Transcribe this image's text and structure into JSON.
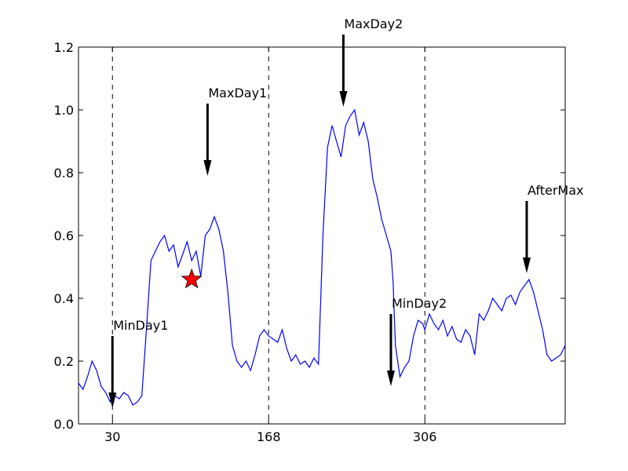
{
  "chart_data": {
    "type": "line",
    "title": "",
    "xlabel": "",
    "ylabel": "",
    "xlim": [
      0,
      430
    ],
    "ylim": [
      0,
      1.2
    ],
    "xticks": [
      30,
      168,
      306
    ],
    "xtick_labels": [
      "30",
      "168",
      "306"
    ],
    "yticks": [
      0.0,
      0.2,
      0.4,
      0.6,
      0.8,
      1.0,
      1.2
    ],
    "ytick_labels": [
      "0.0",
      "0.2",
      "0.4",
      "0.6",
      "0.8",
      "1.0",
      "1.2"
    ],
    "vlines": [
      30,
      168,
      306
    ],
    "line_color": "#0000ff",
    "series": [
      {
        "x": [
          0,
          4,
          8,
          12,
          16,
          20,
          24,
          28,
          30,
          32,
          36,
          40,
          44,
          48,
          52,
          56,
          60,
          64,
          68,
          72,
          76,
          80,
          84,
          88,
          92,
          96,
          100,
          104,
          108,
          112,
          116,
          120,
          124,
          128,
          132,
          136,
          140,
          144,
          148,
          152,
          156,
          160,
          164,
          168,
          172,
          176,
          180,
          184,
          188,
          192,
          196,
          200,
          204,
          208,
          212,
          216,
          220,
          224,
          228,
          232,
          236,
          240,
          244,
          248,
          252,
          256,
          260,
          264,
          268,
          272,
          276,
          278,
          280,
          284,
          288,
          292,
          296,
          300,
          304,
          306,
          310,
          314,
          318,
          322,
          326,
          330,
          334,
          338,
          342,
          346,
          350,
          354,
          358,
          362,
          366,
          370,
          374,
          378,
          382,
          386,
          390,
          394,
          398,
          402,
          406,
          410,
          414,
          418,
          422,
          426,
          430
        ],
        "y": [
          0.13,
          0.11,
          0.15,
          0.2,
          0.17,
          0.12,
          0.1,
          0.07,
          0.1,
          0.09,
          0.08,
          0.1,
          0.09,
          0.06,
          0.07,
          0.09,
          0.3,
          0.52,
          0.55,
          0.58,
          0.6,
          0.55,
          0.57,
          0.5,
          0.54,
          0.58,
          0.52,
          0.55,
          0.47,
          0.6,
          0.62,
          0.66,
          0.62,
          0.55,
          0.42,
          0.25,
          0.2,
          0.18,
          0.2,
          0.17,
          0.22,
          0.28,
          0.3,
          0.28,
          0.27,
          0.26,
          0.3,
          0.24,
          0.2,
          0.22,
          0.19,
          0.2,
          0.18,
          0.21,
          0.19,
          0.6,
          0.88,
          0.95,
          0.9,
          0.85,
          0.95,
          0.98,
          1.0,
          0.92,
          0.96,
          0.9,
          0.78,
          0.72,
          0.65,
          0.6,
          0.55,
          0.45,
          0.25,
          0.15,
          0.18,
          0.2,
          0.28,
          0.33,
          0.32,
          0.3,
          0.35,
          0.32,
          0.3,
          0.33,
          0.28,
          0.31,
          0.27,
          0.26,
          0.3,
          0.28,
          0.22,
          0.35,
          0.33,
          0.36,
          0.4,
          0.38,
          0.36,
          0.4,
          0.41,
          0.38,
          0.42,
          0.44,
          0.46,
          0.42,
          0.36,
          0.3,
          0.22,
          0.2,
          0.21,
          0.22,
          0.25
        ]
      }
    ],
    "star": {
      "x": 100,
      "y": 0.46,
      "color": "#ff0000"
    },
    "annotations": [
      {
        "label": "MinDay1",
        "x": 30,
        "y": 0.05,
        "text_x": 30,
        "text_y": 0.28
      },
      {
        "label": "MaxDay1",
        "x": 114,
        "y": 0.79,
        "text_x": 114,
        "text_y": 1.02
      },
      {
        "label": "MaxDay2",
        "x": 234,
        "y": 1.01,
        "text_x": 234,
        "text_y": 1.24
      },
      {
        "label": "MinDay2",
        "x": 276,
        "y": 0.12,
        "text_x": 276,
        "text_y": 0.35
      },
      {
        "label": "AfterMax",
        "x": 396,
        "y": 0.48,
        "text_x": 396,
        "text_y": 0.71
      }
    ]
  }
}
